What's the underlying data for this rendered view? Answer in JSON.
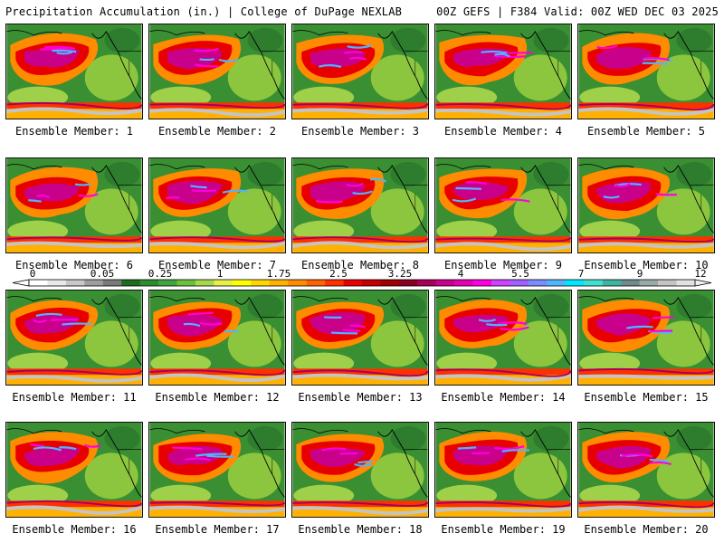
{
  "header": {
    "title_left": "Precipitation Accumulation (in.) | College of DuPage NEXLAB",
    "title_right": "00Z GEFS | F384 Valid: 00Z WED DEC 03 2025"
  },
  "panels": [
    {
      "label": "Ensemble Member: 1"
    },
    {
      "label": "Ensemble Member: 2"
    },
    {
      "label": "Ensemble Member: 3"
    },
    {
      "label": "Ensemble Member: 4"
    },
    {
      "label": "Ensemble Member: 5"
    },
    {
      "label": "Ensemble Member: 6"
    },
    {
      "label": "Ensemble Member: 7"
    },
    {
      "label": "Ensemble Member: 8"
    },
    {
      "label": "Ensemble Member: 9"
    },
    {
      "label": "Ensemble Member: 10"
    },
    {
      "label": "Ensemble Member: 11"
    },
    {
      "label": "Ensemble Member: 12"
    },
    {
      "label": "Ensemble Member: 13"
    },
    {
      "label": "Ensemble Member: 14"
    },
    {
      "label": "Ensemble Member: 15"
    },
    {
      "label": "Ensemble Member: 16"
    },
    {
      "label": "Ensemble Member: 17"
    },
    {
      "label": "Ensemble Member: 18"
    },
    {
      "label": "Ensemble Member: 19"
    },
    {
      "label": "Ensemble Member: 20"
    }
  ],
  "colorbar": {
    "tick_labels": [
      "0",
      "0.05",
      "0.25",
      "1",
      "1.75",
      "2.5",
      "3.25",
      "4",
      "5.5",
      "7",
      "9",
      "12"
    ],
    "colors": [
      "#ffffff",
      "#e8e8e8",
      "#c8c8c8",
      "#9e9e9e",
      "#7a7a7a",
      "#1f6b1f",
      "#2e8b2e",
      "#3fa53f",
      "#6cbf3a",
      "#a8d84a",
      "#e8f048",
      "#ffff00",
      "#ffd700",
      "#ffb000",
      "#ff8c00",
      "#ff6000",
      "#ff3000",
      "#e80000",
      "#c40000",
      "#a00000",
      "#8a0022",
      "#a8005a",
      "#c8008a",
      "#e600b4",
      "#ff00e0",
      "#d040ff",
      "#a060ff",
      "#7a8cff",
      "#50b4ff",
      "#00e6ff",
      "#40e0d0",
      "#3cb4a0",
      "#6e8c8c",
      "#9aa8a8",
      "#c4c4c4",
      "#e2e2e2"
    ]
  }
}
